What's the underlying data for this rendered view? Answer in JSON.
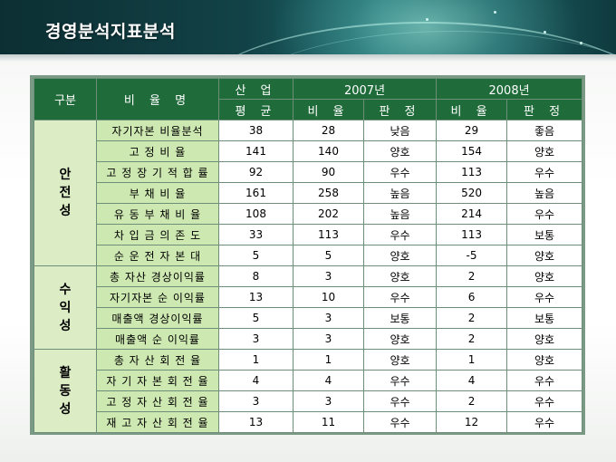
{
  "title": "경영분석지표분석",
  "table": {
    "headers": {
      "category": "구분",
      "ratio_name": "비 율 명",
      "industry_top": "산 업",
      "industry_bottom": "평 균",
      "year1": "2007년",
      "year2": "2008년",
      "ratio": "비 율",
      "judgment": "판 정"
    },
    "groups": [
      {
        "label": "안\n전\n성",
        "rows": [
          {
            "name": "자기자본 비율분석",
            "avg": "38",
            "r2007": "28",
            "j2007": "낮음",
            "r2008": "29",
            "j2008": "좋음"
          },
          {
            "name": "고 정 비 율",
            "avg": "141",
            "r2007": "140",
            "j2007": "양호",
            "r2008": "154",
            "j2008": "양호"
          },
          {
            "name": "고 정 장 기 적 합 률",
            "avg": "92",
            "r2007": "90",
            "j2007": "우수",
            "r2008": "113",
            "j2008": "우수"
          },
          {
            "name": "부 채 비 율",
            "avg": "161",
            "r2007": "258",
            "j2007": "높음",
            "r2008": "520",
            "j2008": "높음"
          },
          {
            "name": "유 동 부 채 비 율",
            "avg": "108",
            "r2007": "202",
            "j2007": "높음",
            "r2008": "214",
            "j2008": "우수"
          },
          {
            "name": "차 입 금 의 존 도",
            "avg": "33",
            "r2007": "113",
            "j2007": "우수",
            "r2008": "113",
            "j2008": "보통"
          },
          {
            "name": "순 운 전 자 본 대",
            "avg": "5",
            "r2007": "5",
            "j2007": "양호",
            "r2008": "-5",
            "j2008": "양호"
          }
        ]
      },
      {
        "label": "수\n익\n성",
        "rows": [
          {
            "name": "총 자산 경상이익률",
            "avg": "8",
            "r2007": "3",
            "j2007": "양호",
            "r2008": "2",
            "j2008": "양호"
          },
          {
            "name": "자기자본 순 이익률",
            "avg": "13",
            "r2007": "10",
            "j2007": "우수",
            "r2008": "6",
            "j2008": "우수"
          },
          {
            "name": "매출액 경상이익률",
            "avg": "5",
            "r2007": "3",
            "j2007": "보통",
            "r2008": "2",
            "j2008": "보통"
          },
          {
            "name": "매출액 순 이익률",
            "avg": "3",
            "r2007": "3",
            "j2007": "양호",
            "r2008": "2",
            "j2008": "양호"
          }
        ]
      },
      {
        "label": "활\n동\n성",
        "rows": [
          {
            "name": "총 자 산 회 전 율",
            "avg": "1",
            "r2007": "1",
            "j2007": "양호",
            "r2008": "1",
            "j2008": "양호"
          },
          {
            "name": "자 기 자 본 회 전 율",
            "avg": "4",
            "r2007": "4",
            "j2007": "우수",
            "r2008": "4",
            "j2008": "우수"
          },
          {
            "name": "고 정 자 산 회 전 율",
            "avg": "3",
            "r2007": "3",
            "j2007": "우수",
            "r2008": "2",
            "j2008": "우수"
          },
          {
            "name": "재 고 자 산 회 전 율",
            "avg": "13",
            "r2007": "11",
            "j2007": "우수",
            "r2008": "12",
            "j2008": "우수"
          }
        ]
      }
    ]
  }
}
